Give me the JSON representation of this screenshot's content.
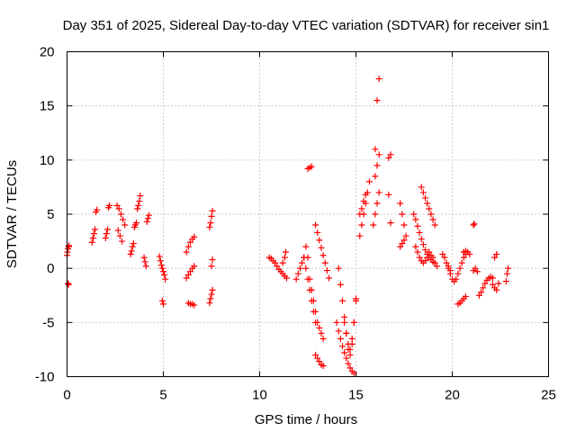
{
  "chart_data": {
    "type": "scatter",
    "title": "Day 351 of 2025, Sidereal Day-to-day VTEC variation (SDTVAR) for receiver sin1",
    "xlabel": "GPS time / hours",
    "ylabel": "SDTVAR / TECUs",
    "xlim": [
      0,
      25
    ],
    "ylim": [
      -10,
      20
    ],
    "xticks": [
      0,
      5,
      10,
      15,
      20,
      25
    ],
    "yticks": [
      -10,
      -5,
      0,
      5,
      10,
      15,
      20
    ],
    "xtick_labels": [
      "0",
      "5",
      "10",
      "15",
      "20",
      "25"
    ],
    "ytick_labels": [
      "-10",
      "-5",
      "0",
      "5",
      "10",
      "15",
      "20"
    ],
    "grid": true,
    "marker": "+",
    "marker_color": "#ff0000",
    "series": [
      {
        "name": "SDTVAR",
        "segments": [
          {
            "x": [
              0.0,
              0.02,
              0.05,
              0.08,
              0.1
            ],
            "y": [
              1.2,
              1.5,
              1.8,
              2.0,
              2.1
            ]
          },
          {
            "x": [
              0.05,
              0.08
            ],
            "y": [
              -1.4,
              -1.5
            ]
          },
          {
            "x": [
              1.3,
              1.35,
              1.4,
              1.45,
              1.5,
              1.55
            ],
            "y": [
              2.4,
              2.8,
              3.2,
              3.6,
              5.2,
              5.4
            ]
          },
          {
            "x": [
              2.0,
              2.05,
              2.1,
              2.15,
              2.2
            ],
            "y": [
              2.8,
              3.2,
              3.6,
              5.6,
              5.8
            ]
          },
          {
            "x": [
              2.6,
              2.7,
              2.8,
              2.9,
              3.0,
              2.65,
              2.75,
              2.85
            ],
            "y": [
              5.8,
              5.5,
              5.0,
              4.5,
              4.0,
              3.5,
              3.0,
              2.5
            ]
          },
          {
            "x": [
              3.3,
              3.35,
              3.4,
              3.45,
              3.5,
              3.55,
              3.6,
              3.65,
              3.7,
              3.75,
              3.8
            ],
            "y": [
              1.3,
              1.6,
              2.0,
              2.3,
              3.8,
              4.0,
              4.2,
              5.5,
              5.8,
              6.2,
              6.7
            ]
          },
          {
            "x": [
              4.0,
              4.05,
              4.1,
              4.15,
              4.2,
              4.25
            ],
            "y": [
              1.0,
              0.6,
              0.2,
              4.3,
              4.6,
              4.9
            ]
          },
          {
            "x": [
              4.8,
              4.85,
              4.9,
              4.95,
              5.0,
              5.05,
              5.1,
              4.95,
              5.0
            ],
            "y": [
              1.1,
              0.7,
              0.3,
              0.0,
              -0.3,
              -0.6,
              -1.0,
              -3.0,
              -3.3
            ]
          },
          {
            "x": [
              6.2,
              6.3,
              6.4,
              6.5,
              6.6,
              6.2,
              6.3,
              6.4,
              6.5,
              6.6
            ],
            "y": [
              -0.9,
              -0.6,
              -0.3,
              0.0,
              0.2,
              1.5,
              2.0,
              2.4,
              2.7,
              2.9
            ]
          },
          {
            "x": [
              6.3,
              6.4,
              6.5,
              6.6
            ],
            "y": [
              -3.2,
              -3.3,
              -3.3,
              -3.4
            ]
          },
          {
            "x": [
              7.4,
              7.45,
              7.5,
              7.55,
              7.4,
              7.45,
              7.5,
              7.55,
              7.5,
              7.55
            ],
            "y": [
              -3.2,
              -2.8,
              -2.4,
              -2.0,
              3.8,
              4.2,
              4.8,
              5.3,
              0.2,
              0.8
            ]
          },
          {
            "x": [
              10.5,
              10.6,
              10.7,
              10.8,
              10.9,
              11.0,
              11.1,
              11.2,
              11.3,
              11.4
            ],
            "y": [
              1.0,
              0.9,
              0.7,
              0.5,
              0.2,
              -0.1,
              -0.3,
              -0.5,
              -0.7,
              -0.9
            ]
          },
          {
            "x": [
              11.2,
              11.3,
              11.35
            ],
            "y": [
              0.5,
              1.0,
              1.5
            ]
          },
          {
            "x": [
              11.9,
              12.0,
              12.1,
              12.2,
              12.3,
              12.4,
              12.5,
              12.6,
              12.7,
              12.8
            ],
            "y": [
              -1.0,
              -0.5,
              0.0,
              0.5,
              1.0,
              2.0,
              1.0,
              -1.0,
              -2.0,
              -3.0
            ]
          },
          {
            "x": [
              12.3,
              12.4,
              12.5,
              12.6,
              12.7,
              12.8,
              12.9
            ],
            "y": [
              1.0,
              0.0,
              -1.0,
              -2.0,
              -3.0,
              -4.0,
              -5.0
            ]
          },
          {
            "x": [
              12.5,
              12.6,
              12.7
            ],
            "y": [
              9.2,
              9.3,
              9.4
            ]
          },
          {
            "x": [
              12.9,
              13.0,
              13.1,
              13.2,
              13.3,
              13.4,
              13.5,
              13.6
            ],
            "y": [
              4.0,
              3.3,
              2.6,
              1.9,
              1.2,
              0.5,
              -0.2,
              -0.9
            ]
          },
          {
            "x": [
              12.9,
              13.0,
              13.1,
              13.2,
              13.3
            ],
            "y": [
              -4.0,
              -5.0,
              -5.5,
              -6.0,
              -6.5
            ]
          },
          {
            "x": [
              12.9,
              13.0,
              13.1,
              13.2,
              13.3
            ],
            "y": [
              -8.0,
              -8.3,
              -8.6,
              -8.9,
              -9.0
            ]
          },
          {
            "x": [
              14.0,
              14.1,
              14.2,
              14.3,
              14.4,
              14.5,
              14.6,
              14.7,
              14.8,
              14.9
            ],
            "y": [
              -5.0,
              -5.8,
              -6.5,
              -7.2,
              -7.8,
              -8.3,
              -8.8,
              -9.2,
              -9.5,
              -9.7
            ]
          },
          {
            "x": [
              14.1,
              14.2,
              14.3,
              14.4,
              14.5,
              14.6,
              14.7,
              14.8,
              14.9,
              15.0
            ],
            "y": [
              0.0,
              -1.5,
              -3.0,
              -4.5,
              -6.0,
              -7.5,
              -8.0,
              -7.0,
              -5.0,
              -3.0
            ]
          },
          {
            "x": [
              14.4,
              14.5,
              14.6,
              14.7,
              14.8,
              14.9,
              15.0
            ],
            "y": [
              -5.0,
              -6.0,
              -7.0,
              -7.5,
              -6.5,
              -5.0,
              -2.8
            ]
          },
          {
            "x": [
              15.2,
              15.3,
              15.4,
              15.5,
              15.6,
              15.7
            ],
            "y": [
              3.0,
              4.0,
              5.0,
              6.0,
              7.0,
              8.0
            ]
          },
          {
            "x": [
              15.2,
              15.3,
              15.4,
              15.5
            ],
            "y": [
              5.0,
              5.5,
              6.2,
              6.8
            ]
          },
          {
            "x": [
              15.9,
              16.0,
              16.1,
              16.2
            ],
            "y": [
              4.0,
              5.0,
              6.0,
              7.0
            ]
          },
          {
            "x": [
              16.0,
              16.1,
              16.2
            ],
            "y": [
              8.5,
              9.5,
              10.5
            ]
          },
          {
            "x": [
              16.0,
              16.1,
              16.2
            ],
            "y": [
              11.0,
              15.5,
              17.5
            ]
          },
          {
            "x": [
              16.7,
              16.8
            ],
            "y": [
              10.2,
              10.5
            ]
          },
          {
            "x": [
              16.7,
              16.8
            ],
            "y": [
              6.8,
              4.2
            ]
          },
          {
            "x": [
              17.3,
              17.4,
              17.5,
              17.6
            ],
            "y": [
              6.0,
              5.0,
              4.0,
              3.0
            ]
          },
          {
            "x": [
              17.3,
              17.4,
              17.5
            ],
            "y": [
              2.0,
              2.3,
              2.6
            ]
          },
          {
            "x": [
              18.0,
              18.1,
              18.2,
              18.3,
              18.4,
              18.5,
              18.6,
              18.7,
              18.8,
              18.9,
              19.0
            ],
            "y": [
              5.0,
              4.5,
              3.9,
              3.3,
              2.7,
              2.2,
              1.7,
              1.3,
              1.0,
              0.8,
              0.6
            ]
          },
          {
            "x": [
              18.1,
              18.2,
              18.3,
              18.4,
              18.5,
              18.6,
              18.7,
              18.8,
              18.9,
              19.0,
              19.1,
              19.2
            ],
            "y": [
              2.0,
              1.5,
              1.0,
              0.7,
              0.5,
              0.7,
              1.0,
              1.5,
              1.2,
              1.0,
              0.5,
              0.2
            ]
          },
          {
            "x": [
              18.4,
              18.5,
              18.6,
              18.7,
              18.8,
              18.9,
              19.0,
              19.1
            ],
            "y": [
              7.5,
              7.0,
              6.5,
              6.0,
              5.5,
              5.0,
              4.5,
              4.0
            ]
          },
          {
            "x": [
              19.5,
              19.6,
              19.7,
              19.8,
              19.9
            ],
            "y": [
              1.3,
              1.0,
              0.5,
              0.2,
              -0.2
            ]
          },
          {
            "x": [
              19.8,
              19.9,
              20.0,
              20.1,
              20.2,
              20.3,
              20.4,
              20.5,
              20.6,
              20.7
            ],
            "y": [
              0.0,
              -0.5,
              -1.0,
              -1.2,
              -1.0,
              -0.5,
              0.0,
              0.5,
              1.0,
              1.3
            ]
          },
          {
            "x": [
              20.3,
              20.4,
              20.5,
              20.6,
              20.7
            ],
            "y": [
              -3.3,
              -3.2,
              -3.0,
              -2.8,
              -2.6
            ]
          },
          {
            "x": [
              20.6,
              20.7,
              20.8,
              20.9
            ],
            "y": [
              1.5,
              1.6,
              1.5,
              1.3
            ]
          },
          {
            "x": [
              21.1,
              21.15
            ],
            "y": [
              4.0,
              4.1
            ]
          },
          {
            "x": [
              21.4,
              21.5,
              21.6,
              21.7,
              21.8,
              21.9,
              22.0,
              22.1
            ],
            "y": [
              -2.5,
              -2.2,
              -1.8,
              -1.4,
              -1.1,
              -0.9,
              -0.8,
              -0.9
            ]
          },
          {
            "x": [
              21.1,
              21.2,
              21.3
            ],
            "y": [
              -0.2,
              0.0,
              -0.3
            ]
          },
          {
            "x": [
              22.1,
              22.2,
              22.3,
              22.4,
              22.2,
              22.3
            ],
            "y": [
              -1.5,
              -1.8,
              -2.0,
              -1.4,
              1.0,
              1.3
            ]
          },
          {
            "x": [
              22.8,
              22.85,
              22.9
            ],
            "y": [
              -1.2,
              -0.5,
              0.0
            ]
          }
        ]
      }
    ]
  }
}
